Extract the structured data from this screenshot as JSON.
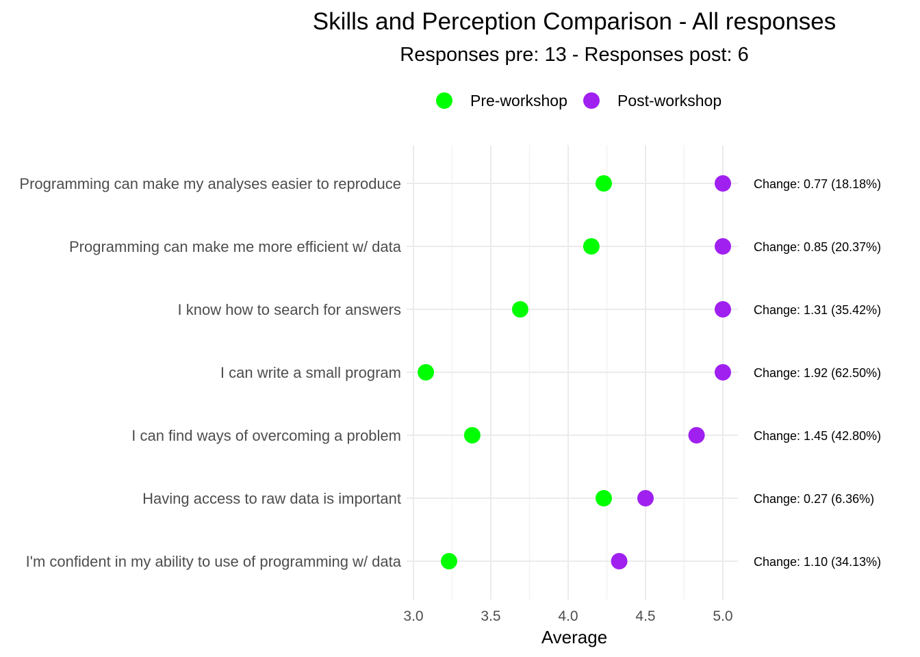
{
  "chart_data": {
    "type": "scatter",
    "title": "Skills and Perception Comparison - All responses",
    "subtitle": "Responses pre: 13 - Responses post: 6",
    "xlabel": "Average",
    "ylabel": "",
    "xlim": [
      3.0,
      5.0
    ],
    "x_ticks": [
      "3.0",
      "3.5",
      "4.0",
      "4.5",
      "5.0"
    ],
    "grid": true,
    "legend_position": "top",
    "categories": [
      "Programming can make my analyses easier to reproduce",
      "Programming can make me more efficient w/ data",
      "I know how to search for answers",
      "I can write a small program",
      "I can find ways of overcoming a problem",
      "Having access to raw data is important",
      "I'm confident in my ability to use of programming w/ data"
    ],
    "series": [
      {
        "name": "Pre-workshop",
        "color": "#00ff00",
        "values": [
          4.23,
          4.15,
          3.69,
          3.08,
          3.38,
          4.23,
          3.23
        ]
      },
      {
        "name": "Post-workshop",
        "color": "#a020f0",
        "values": [
          5.0,
          5.0,
          5.0,
          5.0,
          4.83,
          4.5,
          4.33
        ]
      }
    ],
    "annotations": [
      "Change: 0.77 (18.18%)",
      "Change: 0.85 (20.37%)",
      "Change: 1.31 (35.42%)",
      "Change: 1.92 (62.50%)",
      "Change: 1.45 (42.80%)",
      "Change: 0.27 (6.36%)",
      "Change: 1.10 (34.13%)"
    ]
  }
}
